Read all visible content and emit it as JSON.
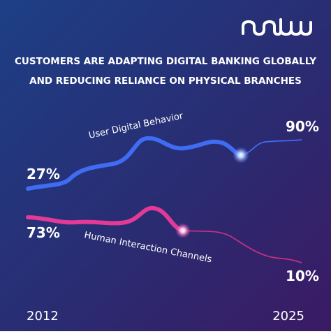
{
  "header": {
    "title_lines": [
      "CUSTOMERS ARE ADAPTING DIGITAL BANKING GLOBALLY",
      "AND REDUCING RELIANCE ON PHYSICAL BRANCHES"
    ]
  },
  "series": [
    {
      "name": "User Digital Behavior",
      "start_label": "27%",
      "end_label": "90%"
    },
    {
      "name": "Human Interaction Channels",
      "start_label": "73%",
      "end_label": "10%"
    }
  ],
  "years": {
    "start": "2012",
    "end": "2025"
  }
}
